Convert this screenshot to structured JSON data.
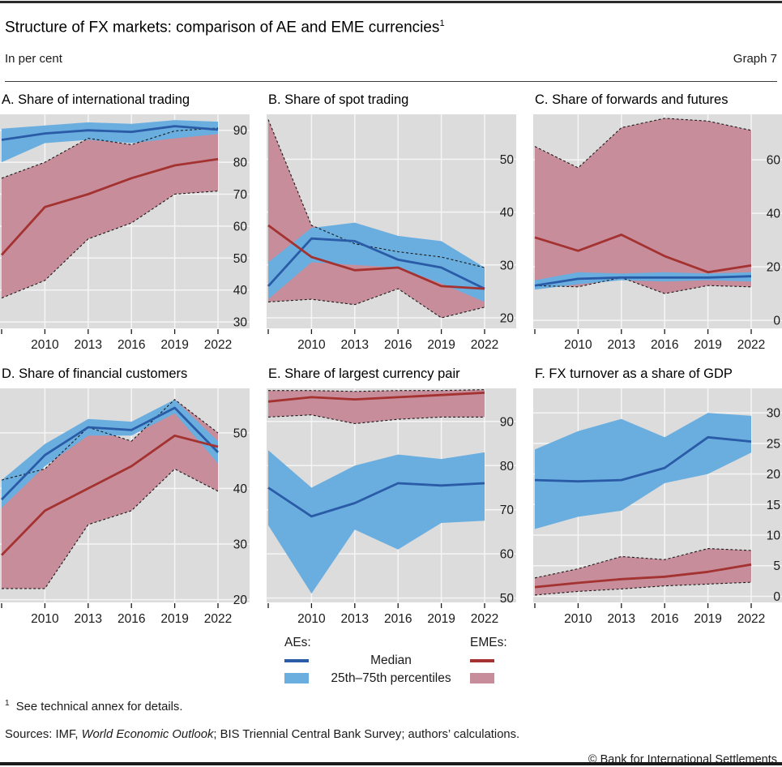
{
  "header": {
    "title": "Structure of FX markets: comparison of AE and EME currencies",
    "title_sup": "1",
    "subtitle": "In per cent",
    "graph_label": "Graph 7"
  },
  "legend": {
    "ae_header": "AEs:",
    "eme_header": "EMEs:",
    "median_label": "Median",
    "band_label": "25th–75th percentiles"
  },
  "footer": {
    "footnote_sup": "1",
    "footnote_text": "See technical annex for details.",
    "sources_prefix": "Sources: IMF, ",
    "sources_italic": "World Economic Outlook",
    "sources_suffix": "; BIS Triennial Central Bank Survey; authors’ calculations.",
    "copyright": "© Bank for International Settlements"
  },
  "colors": {
    "ae_median": "#2a5ba6",
    "ae_band": "#6aaee0",
    "eme_median": "#a33230",
    "eme_band": "#c78d9b",
    "plot_bg": "#dcdcdc",
    "gridline": "#f5f5f5",
    "dash": "#1a1a1a",
    "tick": "#1a1a1a"
  },
  "chart_data": [
    {
      "id": "A",
      "type": "area",
      "title": "A. Share of international trading",
      "x": [
        2007,
        2010,
        2013,
        2016,
        2019,
        2022
      ],
      "xticklabels": [
        "2010",
        "2013",
        "2016",
        "2019",
        "2022"
      ],
      "ylim": [
        28,
        95
      ],
      "yticks": [
        30,
        40,
        50,
        60,
        70,
        80,
        90
      ],
      "legend_position": "below-figure",
      "grid": true,
      "ae": {
        "median": [
          87,
          89,
          90,
          89.5,
          91.3,
          90.2
        ],
        "p25": [
          80,
          86,
          87,
          86,
          87.5,
          88.8
        ],
        "p75": [
          90.5,
          91.5,
          92.5,
          92,
          93.2,
          92.7
        ]
      },
      "eme": {
        "median": [
          51,
          66,
          70,
          75,
          79,
          81
        ],
        "p25": [
          37.5,
          43,
          56,
          61,
          70,
          71
        ],
        "p75": [
          75,
          80,
          87.5,
          85.5,
          89.8,
          90.7
        ]
      }
    },
    {
      "id": "B",
      "type": "area",
      "title": "B. Share of spot trading",
      "x": [
        2007,
        2010,
        2013,
        2016,
        2019,
        2022
      ],
      "xticklabels": [
        "2010",
        "2013",
        "2016",
        "2019",
        "2022"
      ],
      "ylim": [
        18,
        58.5
      ],
      "yticks": [
        20,
        30,
        40,
        50
      ],
      "legend_position": "below-figure",
      "grid": true,
      "ae": {
        "median": [
          26,
          35,
          34.5,
          31,
          29.5,
          25.5
        ],
        "p25": [
          23.5,
          30.5,
          30,
          29.5,
          26.5,
          23
        ],
        "p75": [
          30.5,
          37,
          38,
          35.5,
          34.5,
          29.5
        ]
      },
      "eme": {
        "median": [
          37.5,
          31.5,
          29,
          29.5,
          26,
          25.5
        ],
        "p25": [
          23,
          23.5,
          22.5,
          25.5,
          20,
          22
        ],
        "p75": [
          57.5,
          37.5,
          34,
          32.5,
          31.5,
          29.5
        ]
      }
    },
    {
      "id": "C",
      "type": "area",
      "title": "C. Share of forwards and futures",
      "x": [
        2007,
        2010,
        2013,
        2016,
        2019,
        2022
      ],
      "xticklabels": [
        "2010",
        "2013",
        "2016",
        "2019",
        "2022"
      ],
      "ylim": [
        -3,
        77
      ],
      "yticks": [
        0,
        20,
        40,
        60
      ],
      "legend_position": "below-figure",
      "grid": true,
      "ae": {
        "median": [
          13,
          15.5,
          16,
          16,
          16,
          16.5
        ],
        "p25": [
          11.5,
          13.5,
          15,
          14.5,
          15,
          14.5
        ],
        "p75": [
          15,
          18,
          17.5,
          18,
          17.5,
          18
        ]
      },
      "eme": {
        "median": [
          31,
          26,
          32,
          24,
          18,
          20.5
        ],
        "p25": [
          13,
          12.5,
          16,
          10,
          13,
          12.5
        ],
        "p75": [
          65,
          57,
          72,
          75.5,
          74.5,
          71
        ]
      }
    },
    {
      "id": "D",
      "type": "area",
      "title": "D. Share of financial customers",
      "x": [
        2007,
        2010,
        2013,
        2016,
        2019,
        2022
      ],
      "xticklabels": [
        "2010",
        "2013",
        "2016",
        "2019",
        "2022"
      ],
      "ylim": [
        19.5,
        58
      ],
      "yticks": [
        20,
        30,
        40,
        50
      ],
      "legend_position": "below-figure",
      "grid": true,
      "ae": {
        "median": [
          38,
          46,
          51,
          50.5,
          54.5,
          46.5
        ],
        "p25": [
          36.5,
          44,
          49.5,
          49.5,
          53.5,
          44.5
        ],
        "p75": [
          41.5,
          48,
          52.5,
          52,
          56,
          48.5
        ]
      },
      "eme": {
        "median": [
          28,
          36,
          40,
          44,
          49.5,
          47.5
        ],
        "p25": [
          22,
          22,
          33.5,
          36,
          43.5,
          39.5
        ],
        "p75": [
          41.5,
          43.5,
          51,
          48.5,
          56,
          50
        ]
      }
    },
    {
      "id": "E",
      "type": "area",
      "title": "E. Share of largest currency pair",
      "x": [
        2007,
        2010,
        2013,
        2016,
        2019,
        2022
      ],
      "xticklabels": [
        "2010",
        "2013",
        "2016",
        "2019",
        "2022"
      ],
      "ylim": [
        49,
        97.5
      ],
      "yticks": [
        50,
        60,
        70,
        80,
        90
      ],
      "legend_position": "below-figure",
      "grid": true,
      "ae": {
        "median": [
          75,
          68.5,
          71.5,
          76,
          75.5,
          76
        ],
        "p25": [
          66.5,
          51,
          65.5,
          61,
          67,
          67.5
        ],
        "p75": [
          83.5,
          75,
          80,
          82.5,
          81.5,
          83
        ]
      },
      "eme": {
        "median": [
          94.5,
          95.5,
          95,
          95.5,
          96,
          96.5
        ],
        "p25": [
          91,
          91.5,
          89.5,
          90.5,
          91,
          91
        ],
        "p75": [
          97,
          97,
          96.8,
          97,
          97,
          97.2
        ]
      }
    },
    {
      "id": "F",
      "type": "area",
      "title": "F. FX turnover as a share of GDP",
      "x": [
        2007,
        2010,
        2013,
        2016,
        2019,
        2022
      ],
      "xticklabels": [
        "2010",
        "2013",
        "2016",
        "2019",
        "2022"
      ],
      "ylim": [
        -1,
        34
      ],
      "yticks": [
        0,
        5,
        10,
        15,
        20,
        25,
        30
      ],
      "legend_position": "below-figure",
      "grid": true,
      "ae": {
        "median": [
          19,
          18.8,
          19,
          21,
          26,
          25.3
        ],
        "p25": [
          11,
          13,
          14,
          18.5,
          20,
          23.5
        ],
        "p75": [
          24,
          27,
          29,
          26,
          30,
          29.5
        ]
      },
      "eme": {
        "median": [
          1.5,
          2.2,
          2.8,
          3.2,
          4,
          5.2
        ],
        "p25": [
          0.2,
          0.8,
          1.2,
          1.7,
          2,
          2.3
        ],
        "p75": [
          3,
          4.5,
          6.5,
          6,
          7.8,
          7.5
        ]
      }
    }
  ]
}
